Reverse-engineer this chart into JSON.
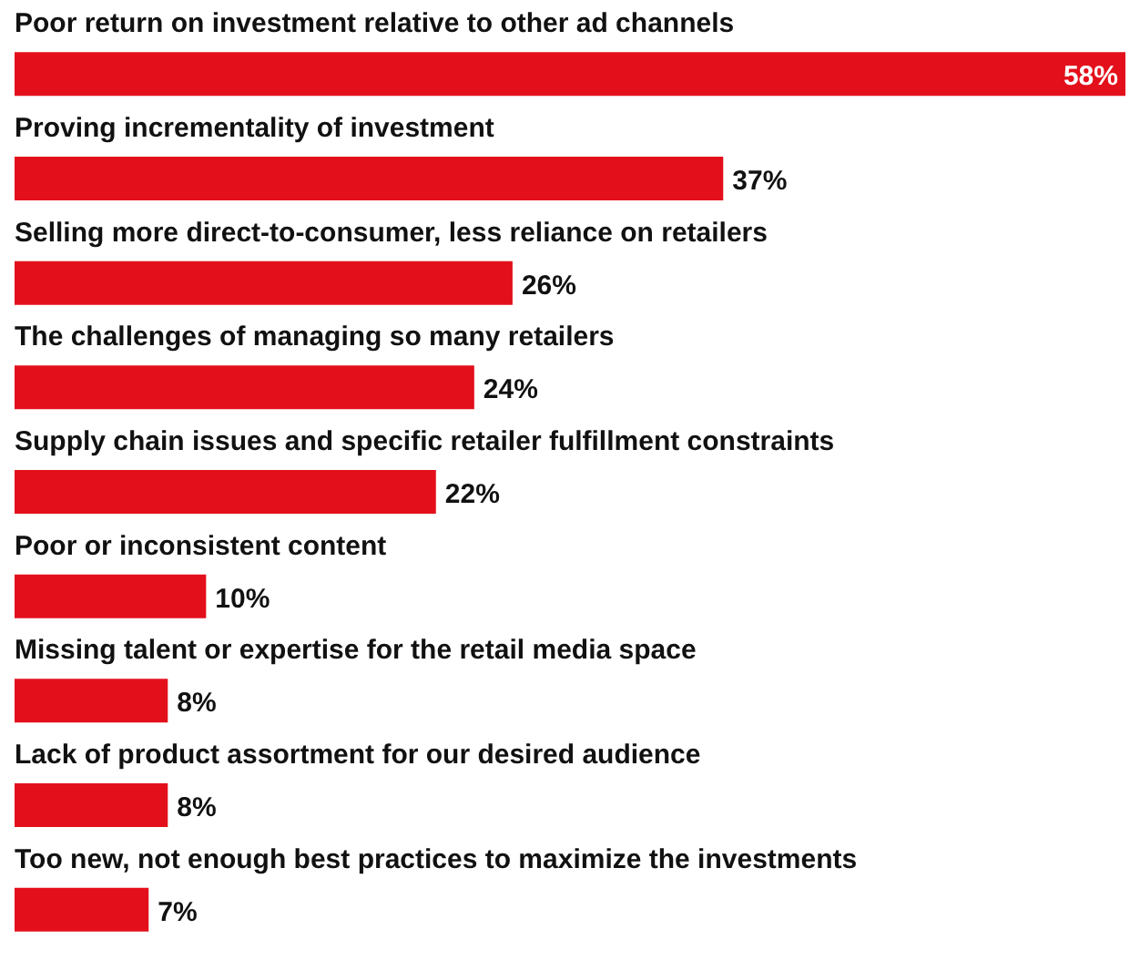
{
  "chart_data": {
    "type": "bar",
    "orientation": "horizontal",
    "categories": [
      "Poor return on investment relative to other ad channels",
      "Proving incrementality of investment",
      "Selling more direct-to-consumer, less reliance on retailers",
      "The challenges of managing so many retailers",
      "Supply chain issues and specific retailer fulfillment constraints",
      "Poor or inconsistent content",
      "Missing talent or expertise for the retail media space",
      "Lack of product assortment for our desired audience",
      "Too new, not enough best practices to maximize the investments"
    ],
    "values": [
      58,
      37,
      26,
      24,
      22,
      10,
      8,
      8,
      7
    ],
    "value_labels": [
      "58%",
      "37%",
      "26%",
      "24%",
      "22%",
      "10%",
      "8%",
      "8%",
      "7%"
    ],
    "color": "#e3101c"
  }
}
